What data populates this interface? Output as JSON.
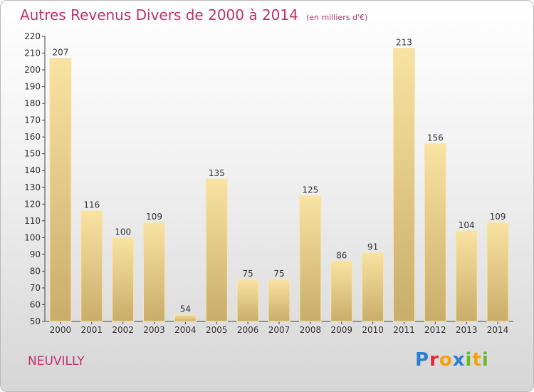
{
  "header": {
    "title": "Autres Revenus Divers de 2000 à 2014",
    "subtitle": "(en milliers d'€)"
  },
  "footer": {
    "commune": "NEUVILLY",
    "logo_letters": [
      "P",
      "r",
      "o",
      "x",
      "i",
      "t",
      "i"
    ],
    "logo_colors": [
      "#2a7fd4",
      "#e8262c",
      "#f2a10f",
      "#2a7fd4",
      "#6bb82a",
      "#f2a10f",
      "#6bb82a"
    ]
  },
  "colors": {
    "accent": "#c0306a",
    "bar_light": "#f9e3a2",
    "bar_dark": "#c9ad6a"
  },
  "chart_data": {
    "type": "bar",
    "categories": [
      "2000",
      "2001",
      "2002",
      "2003",
      "2004",
      "2005",
      "2006",
      "2007",
      "2008",
      "2009",
      "2010",
      "2011",
      "2012",
      "2013",
      "2014"
    ],
    "values": [
      207,
      116,
      100,
      109,
      54,
      135,
      75,
      75,
      125,
      86,
      91,
      213,
      156,
      104,
      109
    ],
    "ylim": [
      50,
      220
    ],
    "yticks": [
      50,
      60,
      70,
      80,
      90,
      100,
      110,
      120,
      130,
      140,
      150,
      160,
      170,
      180,
      190,
      200,
      210,
      220
    ],
    "grid": false,
    "data_labels": true
  }
}
